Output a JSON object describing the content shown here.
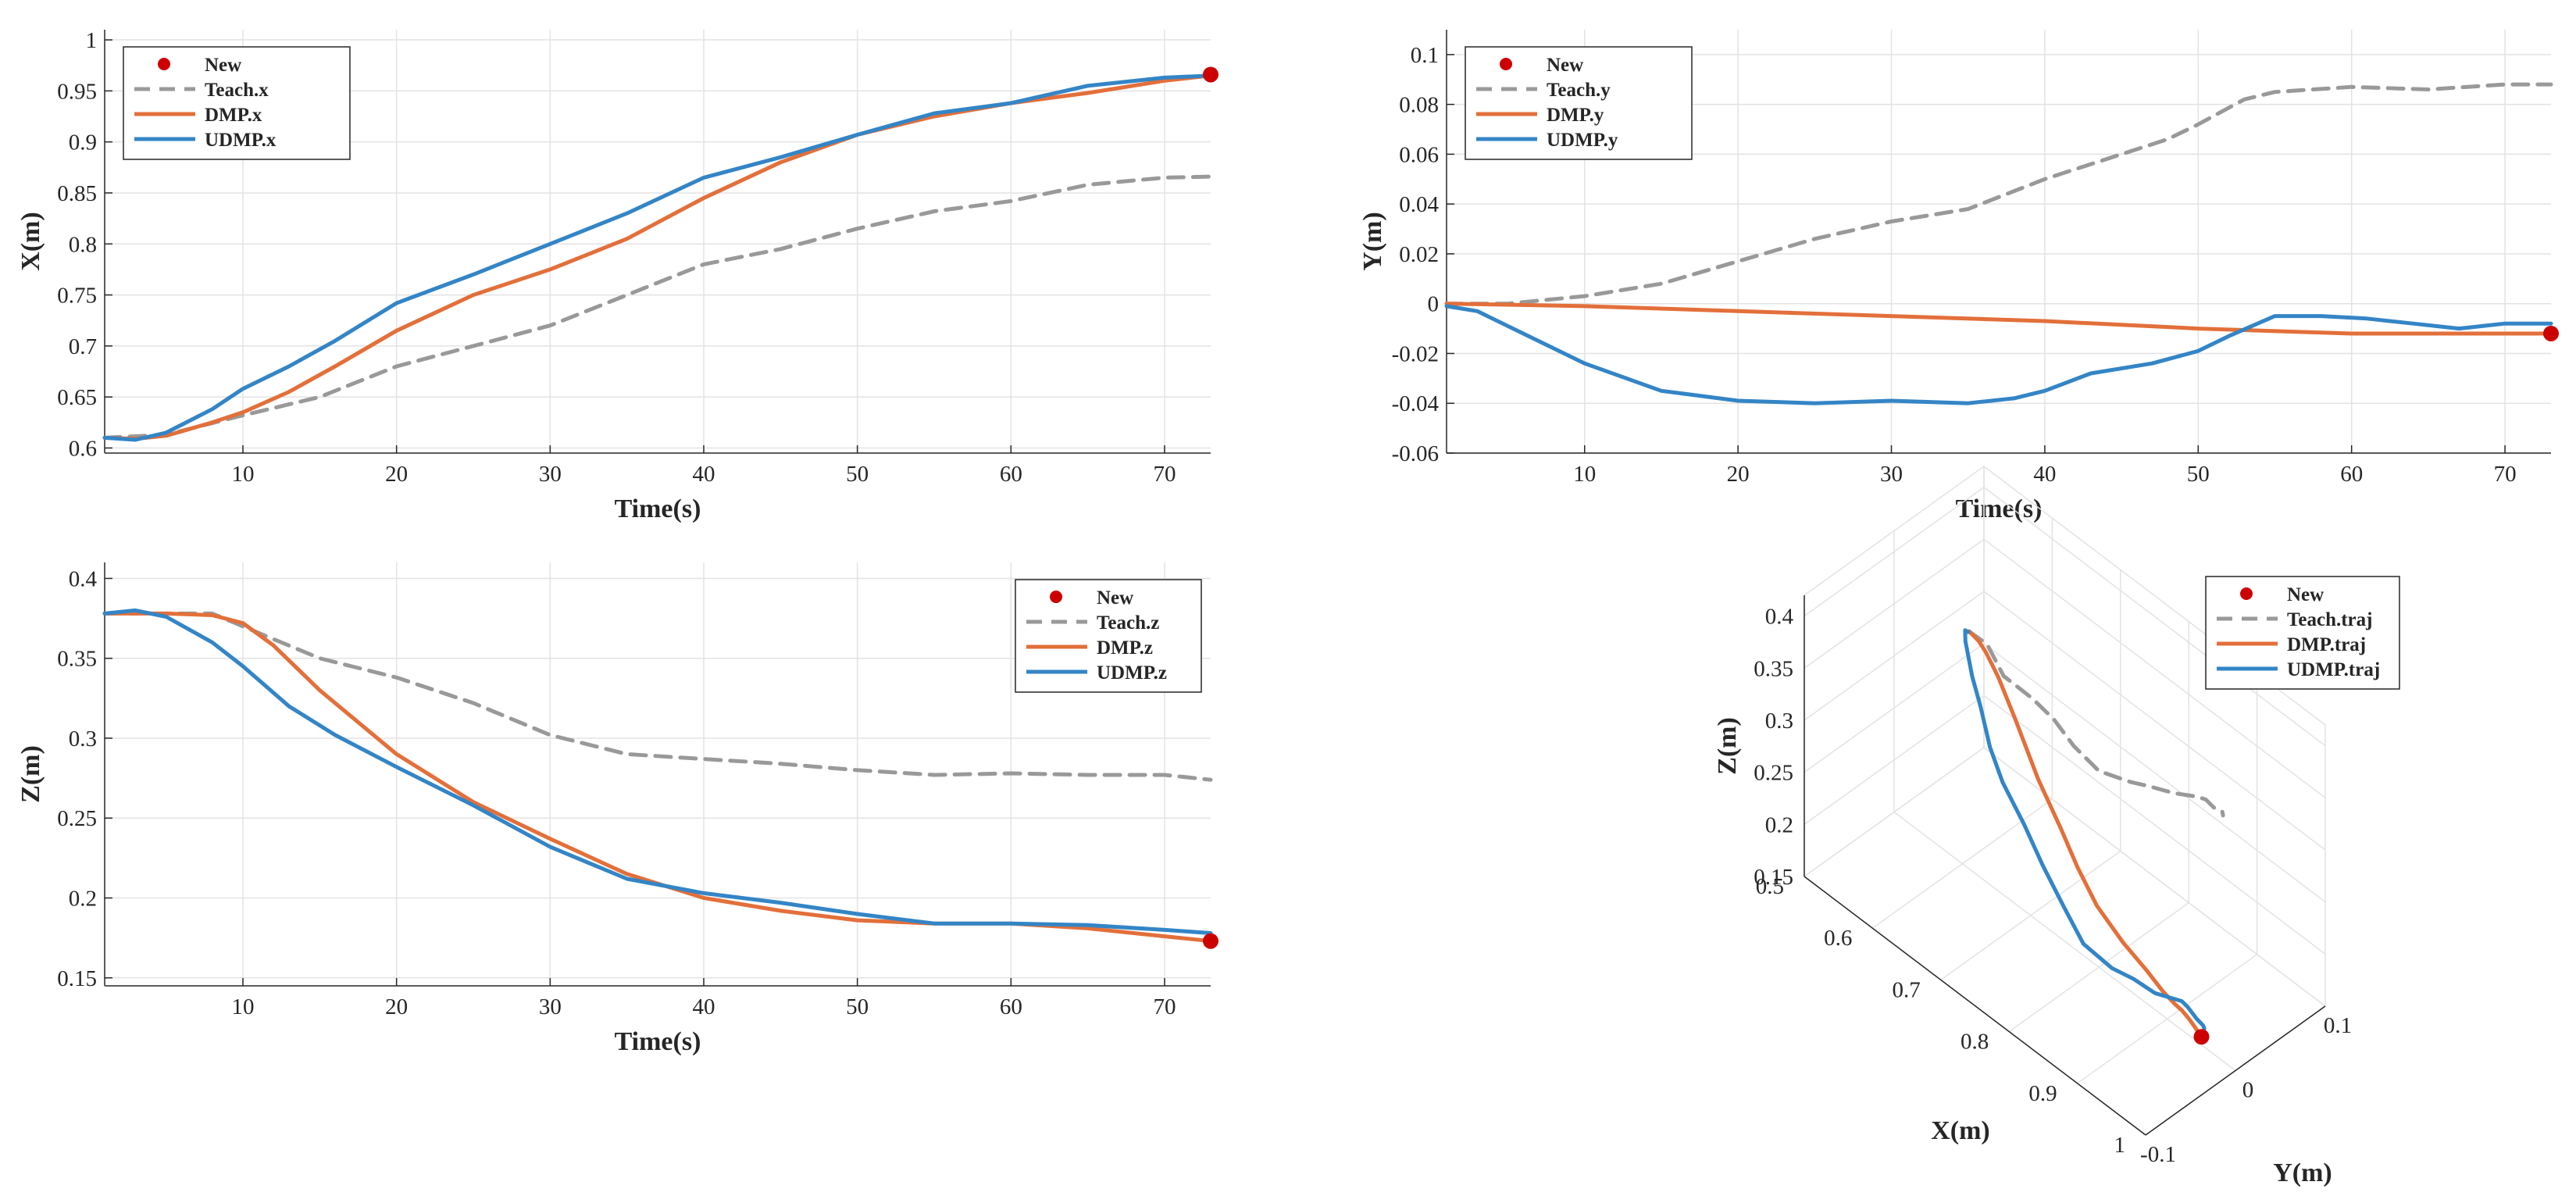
{
  "colors": {
    "teach": "#999999",
    "dmp": "#E36F3A",
    "udmp": "#3385C6",
    "new": "#CC0000",
    "grid": "#E3E3E3",
    "axis": "#262626"
  },
  "chart_data": [
    {
      "type": "line",
      "xlabel": "Time(s)",
      "ylabel": "X(m)",
      "xlim": [
        1,
        73
      ],
      "ylim": [
        0.595,
        1.01
      ],
      "xticks": [
        10,
        20,
        30,
        40,
        50,
        60,
        70
      ],
      "yticks": [
        0.6,
        0.65,
        0.7,
        0.75,
        0.8,
        0.85,
        0.9,
        0.95,
        1
      ],
      "yticklabels": [
        "0.6",
        "0.65",
        "0.7",
        "0.75",
        "0.8",
        "0.85",
        "0.9",
        "0.95",
        "1"
      ],
      "legend_position": "top-left",
      "legend": [
        "New",
        "Teach.x",
        "DMP.x",
        "UDMP.x"
      ],
      "new_point": {
        "x": 73,
        "y": 0.966
      },
      "series": [
        {
          "name": "Teach.x",
          "style": "dashed",
          "x": [
            1,
            5,
            10,
            15,
            20,
            25,
            30,
            35,
            40,
            45,
            50,
            55,
            60,
            65,
            70,
            73
          ],
          "y": [
            0.61,
            0.613,
            0.632,
            0.65,
            0.68,
            0.7,
            0.72,
            0.75,
            0.78,
            0.795,
            0.815,
            0.832,
            0.842,
            0.858,
            0.865,
            0.866
          ]
        },
        {
          "name": "DMP.x",
          "style": "solid",
          "x": [
            1,
            3,
            5,
            8,
            10,
            13,
            16,
            20,
            25,
            30,
            35,
            40,
            45,
            50,
            55,
            60,
            65,
            70,
            73
          ],
          "y": [
            0.61,
            0.609,
            0.612,
            0.625,
            0.635,
            0.655,
            0.68,
            0.715,
            0.75,
            0.775,
            0.805,
            0.845,
            0.88,
            0.907,
            0.925,
            0.938,
            0.948,
            0.96,
            0.965
          ]
        },
        {
          "name": "UDMP.x",
          "style": "solid",
          "x": [
            1,
            3,
            5,
            8,
            10,
            13,
            16,
            20,
            25,
            30,
            35,
            40,
            45,
            50,
            55,
            60,
            65,
            70,
            73
          ],
          "y": [
            0.61,
            0.608,
            0.615,
            0.638,
            0.658,
            0.68,
            0.705,
            0.742,
            0.77,
            0.8,
            0.83,
            0.865,
            0.885,
            0.907,
            0.928,
            0.938,
            0.955,
            0.963,
            0.965
          ]
        }
      ]
    },
    {
      "type": "line",
      "xlabel": "Time(s)",
      "ylabel": "Y(m)",
      "xlim": [
        1,
        73
      ],
      "ylim": [
        -0.06,
        0.11
      ],
      "xticks": [
        10,
        20,
        30,
        40,
        50,
        60,
        70
      ],
      "yticks": [
        -0.06,
        -0.04,
        -0.02,
        0,
        0.02,
        0.04,
        0.06,
        0.08,
        0.1
      ],
      "yticklabels": [
        "-0.06",
        "-0.04",
        "-0.02",
        "0",
        "0.02",
        "0.04",
        "0.06",
        "0.08",
        "0.1"
      ],
      "legend_position": "top-left",
      "legend": [
        "New",
        "Teach.y",
        "DMP.y",
        "UDMP.y"
      ],
      "new_point": {
        "x": 73,
        "y": -0.012
      },
      "series": [
        {
          "name": "Teach.y",
          "style": "dashed",
          "x": [
            1,
            5,
            10,
            15,
            20,
            25,
            30,
            35,
            40,
            45,
            48,
            50,
            53,
            55,
            60,
            65,
            70,
            73
          ],
          "y": [
            0,
            0,
            0.003,
            0.008,
            0.017,
            0.026,
            0.033,
            0.038,
            0.05,
            0.06,
            0.066,
            0.072,
            0.082,
            0.085,
            0.087,
            0.086,
            0.088,
            0.088
          ]
        },
        {
          "name": "DMP.y",
          "style": "solid",
          "x": [
            1,
            10,
            20,
            30,
            40,
            50,
            60,
            70,
            73
          ],
          "y": [
            0,
            -0.001,
            -0.003,
            -0.005,
            -0.007,
            -0.01,
            -0.012,
            -0.012,
            -0.012
          ]
        },
        {
          "name": "UDMP.y",
          "style": "solid",
          "x": [
            1,
            3,
            6,
            10,
            15,
            20,
            25,
            30,
            35,
            38,
            40,
            43,
            47,
            50,
            52,
            55,
            58,
            61,
            64,
            67,
            70,
            73
          ],
          "y": [
            -0.001,
            -0.003,
            -0.012,
            -0.024,
            -0.035,
            -0.039,
            -0.04,
            -0.039,
            -0.04,
            -0.038,
            -0.035,
            -0.028,
            -0.024,
            -0.019,
            -0.013,
            -0.005,
            -0.005,
            -0.006,
            -0.008,
            -0.01,
            -0.008,
            -0.008
          ]
        }
      ]
    },
    {
      "type": "line",
      "xlabel": "Time(s)",
      "ylabel": "Z(m)",
      "xlim": [
        1,
        73
      ],
      "ylim": [
        0.145,
        0.41
      ],
      "xticks": [
        10,
        20,
        30,
        40,
        50,
        60,
        70
      ],
      "yticks": [
        0.15,
        0.2,
        0.25,
        0.3,
        0.35,
        0.4
      ],
      "yticklabels": [
        "0.15",
        "0.2",
        "0.25",
        "0.3",
        "0.35",
        "0.4"
      ],
      "legend_position": "top-right",
      "legend": [
        "New",
        "Teach.z",
        "DMP.z",
        "UDMP.z"
      ],
      "new_point": {
        "x": 73,
        "y": 0.173
      },
      "series": [
        {
          "name": "Teach.z",
          "style": "dashed",
          "x": [
            1,
            5,
            8,
            12,
            15,
            20,
            25,
            30,
            35,
            40,
            45,
            50,
            55,
            60,
            65,
            70,
            73
          ],
          "y": [
            0.378,
            0.378,
            0.378,
            0.362,
            0.35,
            0.338,
            0.322,
            0.302,
            0.29,
            0.287,
            0.284,
            0.28,
            0.277,
            0.278,
            0.277,
            0.277,
            0.274
          ]
        },
        {
          "name": "DMP.z",
          "style": "solid",
          "x": [
            1,
            5,
            8,
            10,
            12,
            15,
            20,
            25,
            30,
            35,
            40,
            45,
            50,
            55,
            60,
            65,
            70,
            73
          ],
          "y": [
            0.378,
            0.378,
            0.377,
            0.372,
            0.358,
            0.33,
            0.29,
            0.26,
            0.237,
            0.215,
            0.2,
            0.192,
            0.186,
            0.184,
            0.184,
            0.181,
            0.176,
            0.173
          ]
        },
        {
          "name": "UDMP.z",
          "style": "solid",
          "x": [
            1,
            3,
            5,
            8,
            10,
            13,
            16,
            20,
            25,
            30,
            35,
            40,
            45,
            50,
            55,
            60,
            65,
            70,
            73
          ],
          "y": [
            0.378,
            0.38,
            0.376,
            0.36,
            0.345,
            0.32,
            0.302,
            0.282,
            0.258,
            0.232,
            0.212,
            0.203,
            0.197,
            0.19,
            0.184,
            0.184,
            0.183,
            0.18,
            0.178
          ]
        }
      ]
    },
    {
      "type": "line3d",
      "xlabel": "X(m)",
      "ylabel": "Y(m)",
      "zlabel": "Z(m)",
      "xlim": [
        0.5,
        1
      ],
      "ylim": [
        -0.1,
        0.1
      ],
      "zlim": [
        0.15,
        0.4
      ],
      "xticks": [
        0.5,
        0.6,
        0.7,
        0.8,
        0.9,
        1
      ],
      "xticklabels": [
        "0.5",
        "0.6",
        "0.7",
        "0.8",
        "0.9",
        "1"
      ],
      "yticks": [
        -0.1,
        0,
        0.1
      ],
      "yticklabels": [
        "-0.1",
        "0",
        "0.1"
      ],
      "zticks": [
        0.15,
        0.2,
        0.25,
        0.3,
        0.35,
        0.4
      ],
      "zticklabels": [
        "0.15",
        "0.2",
        "0.25",
        "0.3",
        "0.35",
        "0.4"
      ],
      "legend_position": "top-right",
      "legend": [
        "New",
        "Teach.traj",
        "DMP.traj",
        "UDMP.traj"
      ],
      "new_point": {
        "x": 0.966,
        "y": -0.012,
        "z": 0.173
      },
      "series": [
        {
          "name": "Teach.traj",
          "style": "dashed",
          "x": [
            0.61,
            0.613,
            0.632,
            0.65,
            0.68,
            0.7,
            0.72,
            0.75,
            0.78,
            0.795,
            0.815,
            0.832,
            0.842,
            0.858,
            0.865,
            0.866
          ],
          "y": [
            0,
            0,
            0.003,
            0.008,
            0.017,
            0.026,
            0.033,
            0.038,
            0.05,
            0.06,
            0.072,
            0.085,
            0.087,
            0.086,
            0.088,
            0.088
          ],
          "z": [
            0.378,
            0.378,
            0.375,
            0.35,
            0.338,
            0.322,
            0.302,
            0.29,
            0.287,
            0.284,
            0.28,
            0.277,
            0.278,
            0.277,
            0.277,
            0.274
          ]
        },
        {
          "name": "DMP.traj",
          "style": "solid",
          "x": [
            0.61,
            0.61,
            0.625,
            0.635,
            0.655,
            0.68,
            0.715,
            0.75,
            0.775,
            0.805,
            0.845,
            0.88,
            0.907,
            0.925,
            0.938,
            0.948,
            0.96,
            0.965
          ],
          "y": [
            0,
            0,
            -0.001,
            -0.001,
            -0.002,
            -0.002,
            -0.003,
            -0.004,
            -0.005,
            -0.006,
            -0.007,
            -0.008,
            -0.01,
            -0.011,
            -0.012,
            -0.012,
            -0.012,
            -0.012
          ],
          "z": [
            0.378,
            0.378,
            0.377,
            0.372,
            0.358,
            0.33,
            0.29,
            0.26,
            0.237,
            0.215,
            0.2,
            0.192,
            0.186,
            0.184,
            0.184,
            0.181,
            0.176,
            0.173
          ]
        },
        {
          "name": "UDMP.traj",
          "style": "solid",
          "x": [
            0.61,
            0.608,
            0.615,
            0.638,
            0.658,
            0.68,
            0.705,
            0.742,
            0.77,
            0.8,
            0.83,
            0.865,
            0.885,
            0.907,
            0.928,
            0.938,
            0.955,
            0.963,
            0.965
          ],
          "y": [
            -0.001,
            -0.003,
            -0.008,
            -0.018,
            -0.024,
            -0.03,
            -0.035,
            -0.039,
            -0.04,
            -0.039,
            -0.04,
            -0.035,
            -0.026,
            -0.019,
            -0.005,
            -0.006,
            -0.009,
            -0.008,
            -0.008
          ],
          "z": [
            0.378,
            0.38,
            0.376,
            0.36,
            0.345,
            0.32,
            0.302,
            0.282,
            0.258,
            0.232,
            0.212,
            0.203,
            0.197,
            0.19,
            0.184,
            0.184,
            0.183,
            0.18,
            0.178
          ]
        }
      ]
    }
  ]
}
